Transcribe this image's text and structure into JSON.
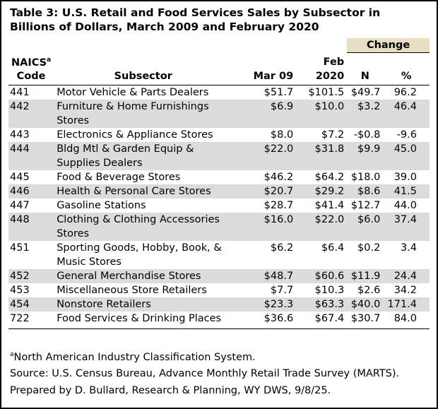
{
  "title": "Table 3: U.S. Retail and Food Services Sales by Subsector in Billions of Dollars, March 2009 and February 2020",
  "header": {
    "code": "NAICS",
    "code_sup": "a",
    "code2": "Code",
    "subsector": "Subsector",
    "mar": "Mar 09",
    "feb": "Feb 2020",
    "change": "Change",
    "n": "N",
    "pct": "%"
  },
  "table": {
    "rows": [
      [
        "441",
        "Motor Vehicle & Parts Dealers",
        "$51.7",
        "$101.5",
        "$49.7",
        "96.2"
      ],
      [
        "442",
        "Furniture & Home Furnishings Stores",
        "$6.9",
        "$10.0",
        "$3.2",
        "46.4"
      ],
      [
        "443",
        "Electronics & Appliance Stores",
        "$8.0",
        "$7.2",
        "-$0.8",
        "-9.6"
      ],
      [
        "444",
        "Bldg Mtl & Garden Equip & Supplies Dealers",
        "$22.0",
        "$31.8",
        "$9.9",
        "45.0"
      ],
      [
        "445",
        "Food & Beverage Stores",
        "$46.2",
        "$64.2",
        "$18.0",
        "39.0"
      ],
      [
        "446",
        "Health & Personal Care Stores",
        "$20.7",
        "$29.2",
        "$8.6",
        "41.5"
      ],
      [
        "447",
        "Gasoline Stations",
        "$28.7",
        "$41.4",
        "$12.7",
        "44.0"
      ],
      [
        "448",
        "Clothing & Clothing Accessories Stores",
        "$16.0",
        "$22.0",
        "$6.0",
        "37.4"
      ],
      [
        "451",
        "Sporting Goods, Hobby, Book, & Music Stores",
        "$6.2",
        "$6.4",
        "$0.2",
        "3.4"
      ],
      [
        "452",
        "General Merchandise Stores",
        "$48.7",
        "$60.6",
        "$11.9",
        "24.4"
      ],
      [
        "453",
        "Miscellaneous Store Retailers",
        "$7.7",
        "$10.3",
        "$2.6",
        "34.2"
      ],
      [
        "454",
        "Nonstore Retailers",
        "$23.3",
        "$63.3",
        "$40.0",
        "171.4"
      ],
      [
        "722",
        "Food Services & Drinking Places",
        "$36.6",
        "$67.4",
        "$30.7",
        "84.0"
      ]
    ]
  },
  "footnotes": {
    "sup": "a",
    "note": "North American Industry Classification System.",
    "source": "Source: U.S. Census Bureau, Advance Monthly Retail Trade Survey (MARTS).",
    "prepared": "Prepared by D. Bullard, Research & Planning, WY DWS, 9/8/25."
  }
}
